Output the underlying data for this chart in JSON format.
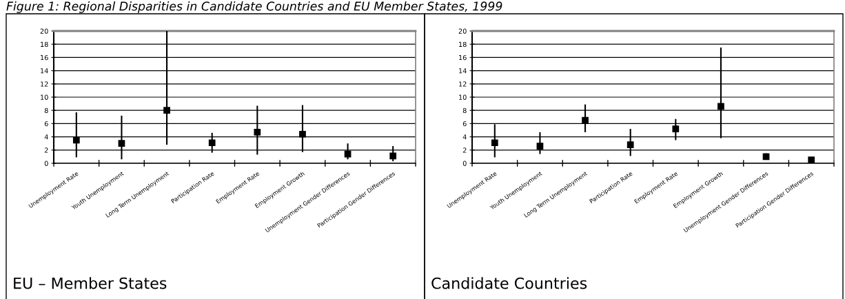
{
  "chart_data": [
    {
      "type": "scatter",
      "title": "EU – Member States",
      "annotations": [
        "Figure 1: Regional Disparities in Candidate Countries and EU Member States, 1999"
      ],
      "categories": [
        "Unemployment Rate",
        "Youth Unemployment",
        "Long Term Unemployment",
        "Participation Rate",
        "Employment Rate",
        "Employment Growth",
        "Unemployment Gender Differences",
        "Participation Gender Differences"
      ],
      "series": [
        {
          "color": "#000000",
          "values": [
            3.5,
            3.0,
            8.0,
            3.1,
            4.7,
            4.4,
            1.4,
            1.1
          ],
          "errors": [
            [
              0.9,
              7.7
            ],
            [
              0.6,
              7.2
            ],
            [
              2.8,
              20
            ],
            [
              1.6,
              4.6
            ],
            [
              1.3,
              8.7
            ],
            [
              1.7,
              8.8
            ],
            [
              0.6,
              3.0
            ],
            [
              0.3,
              2.6
            ]
          ]
        }
      ],
      "ylim": [
        0,
        20
      ],
      "yticks": [
        0,
        2,
        4,
        6,
        8,
        10,
        12,
        14,
        16,
        18,
        20
      ],
      "grid": "y",
      "marker": "square"
    },
    {
      "type": "scatter",
      "title": "Candidate Countries",
      "categories": [
        "Unemployment Rate",
        "Youth Unemployment",
        "Long Term Unemployment",
        "Participation Rate",
        "Employment Rate",
        "Employment Growth",
        "Unemployment Gender Differences",
        "Participation Gender Differences"
      ],
      "series": [
        {
          "color": "#000000",
          "values": [
            3.1,
            2.6,
            6.5,
            2.8,
            5.2,
            8.6,
            1.0,
            0.5
          ],
          "errors": [
            [
              0.9,
              5.9
            ],
            [
              1.4,
              4.7
            ],
            [
              4.7,
              8.9
            ],
            [
              1.1,
              5.2
            ],
            [
              3.5,
              6.7
            ],
            [
              3.8,
              17.5
            ],
            [
              0.6,
              1.5
            ],
            null
          ]
        }
      ],
      "ylim": [
        0,
        20
      ],
      "yticks": [
        0,
        2,
        4,
        6,
        8,
        10,
        12,
        14,
        16,
        18,
        20
      ],
      "grid": "y",
      "marker": "square"
    }
  ]
}
